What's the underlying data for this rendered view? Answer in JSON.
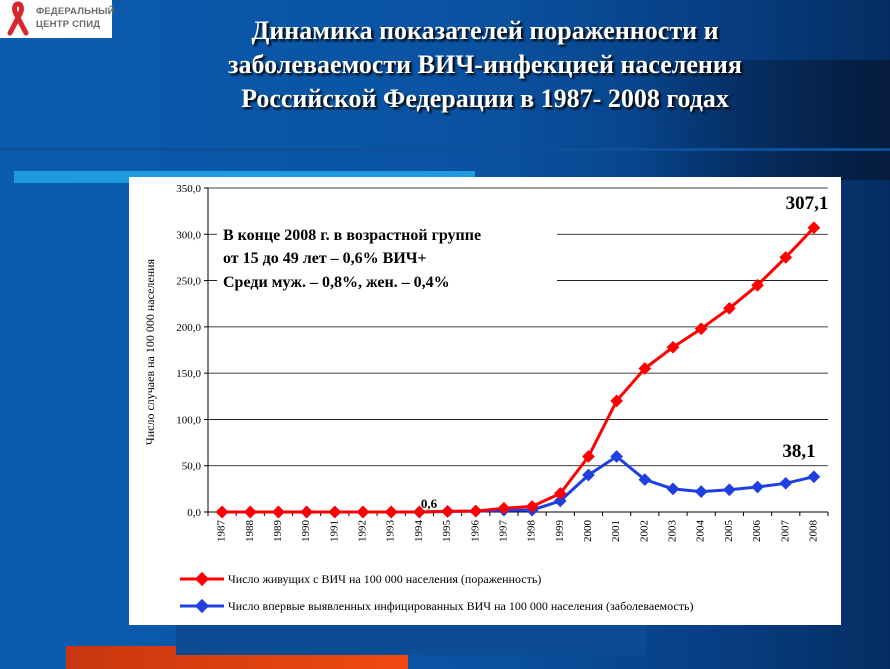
{
  "logo": {
    "line1": "ФЕДЕРАЛЬНЫЙ",
    "line2": "ЦЕНТР СПИД"
  },
  "title": {
    "line1": "Динамика показателей пораженности и",
    "line2": "заболеваемости  ВИЧ-инфекцией населения",
    "line3": "Российской Федерации в 1987- 2008 годах"
  },
  "colors": {
    "series_prevalence": "#ff0000",
    "series_incidence": "#1f3fe0",
    "background": "#0a56a6",
    "strip_light": "#1e9be0",
    "strip_orange": "#e03a10"
  },
  "chart_data": {
    "type": "line",
    "x": [
      "1987",
      "1988",
      "1989",
      "1990",
      "1991",
      "1992",
      "1993",
      "1994",
      "1995",
      "1996",
      "1997",
      "1998",
      "1999",
      "2000",
      "2001",
      "2002",
      "2003",
      "2004",
      "2005",
      "2006",
      "2007",
      "2008"
    ],
    "series": [
      {
        "name": "Число живущих с ВИЧ на 100 000 населения (пораженность)",
        "values": [
          0,
          0,
          0,
          0,
          0,
          0,
          0,
          0,
          0.6,
          1,
          4,
          6,
          20,
          60,
          120,
          155,
          178,
          198,
          220,
          245,
          275,
          307.1
        ]
      },
      {
        "name": "Число впервые выявленных инфицированных ВИЧ на 100 000 населения (заболеваемость)",
        "values": [
          0,
          0,
          0,
          0,
          0,
          0,
          0,
          0,
          0.6,
          1,
          2,
          2,
          12,
          40,
          60,
          35,
          25,
          22,
          24,
          27,
          31,
          38.1
        ]
      }
    ],
    "ylabel": "Число случаев на 100 000 населения",
    "ylim": [
      0,
      350
    ],
    "yticks": [
      "0,0",
      "50,0",
      "100,0",
      "150,0",
      "200,0",
      "250,0",
      "300,0",
      "350,0"
    ],
    "ytick_values": [
      0,
      50,
      100,
      150,
      200,
      250,
      300,
      350
    ],
    "grid": true,
    "legend_position": "bottom",
    "data_labels": {
      "prevalence_last": "307,1",
      "incidence_last": "38,1",
      "early_point": "0,6"
    },
    "annotation": {
      "line1": "В конце 2008 г. в возрастной группе",
      "line2": "от 15 до 49 лет – 0,6% ВИЧ+",
      "line3": "Среди муж. – 0,8%, жен. – 0,4%"
    }
  }
}
